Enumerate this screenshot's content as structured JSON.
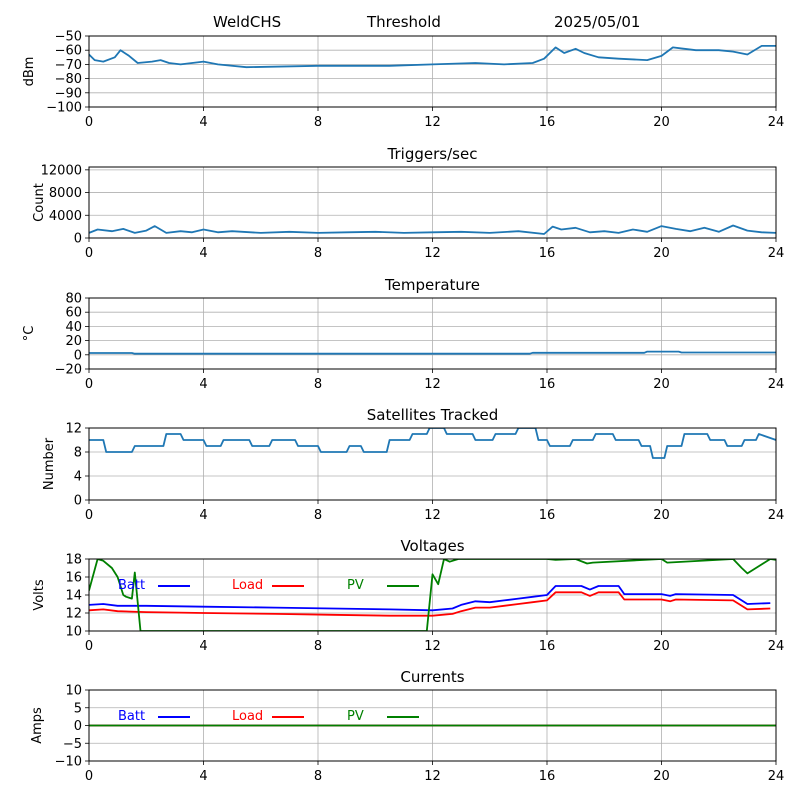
{
  "header": {
    "station": "WeldCHS",
    "mode": "Threshold",
    "date": "2025/05/01"
  },
  "colors": {
    "series": "#1f77b4",
    "batt": "#0000ff",
    "load": "#ff0000",
    "pv": "#008000",
    "grid": "#b0b0b0"
  },
  "chart_data": [
    {
      "type": "line",
      "title": "",
      "xlabel": "",
      "ylabel": "dBm",
      "xlim": [
        0,
        24
      ],
      "ylim": [
        -100,
        -50
      ],
      "xticks": [
        0,
        4,
        8,
        12,
        16,
        20,
        24
      ],
      "yticks": [
        -100,
        -90,
        -80,
        -70,
        -60,
        -50
      ],
      "grid": true,
      "series": [
        {
          "x": [
            0,
            0.2,
            0.5,
            0.9,
            1.1,
            1.4,
            1.7,
            2.2,
            2.5,
            2.8,
            3.2,
            3.6,
            4.0,
            4.5,
            5.5,
            8,
            10.5,
            12.0,
            13.5,
            14.5,
            15.5,
            15.9,
            16.3,
            16.6,
            17.0,
            17.3,
            17.8,
            18.5,
            19.5,
            20.0,
            20.4,
            20.8,
            21.2,
            22.0,
            22.5,
            23.0,
            23.5,
            24
          ],
          "values": [
            -63,
            -67,
            -68,
            -65,
            -60,
            -64,
            -69,
            -68,
            -67,
            -69,
            -70,
            -69,
            -68,
            -70,
            -72,
            -71,
            -71,
            -70,
            -69,
            -70,
            -69,
            -66,
            -58,
            -62,
            -59,
            -62,
            -65,
            -66,
            -67,
            -64,
            -58,
            -59,
            -60,
            -60,
            -61,
            -63,
            -57,
            -57
          ]
        }
      ]
    },
    {
      "type": "line",
      "title": "Triggers/sec",
      "xlabel": "",
      "ylabel": "Count",
      "xlim": [
        0,
        24
      ],
      "ylim": [
        0,
        12500
      ],
      "xticks": [
        0,
        4,
        8,
        12,
        16,
        20,
        24
      ],
      "yticks": [
        0,
        4000,
        8000,
        12000
      ],
      "grid": true,
      "series": [
        {
          "x": [
            0,
            0.3,
            0.8,
            1.2,
            1.6,
            2.0,
            2.3,
            2.7,
            3.2,
            3.6,
            4.0,
            4.5,
            5.0,
            6.0,
            7.0,
            8.0,
            9.0,
            10.0,
            11.0,
            12.0,
            13.0,
            14.0,
            15.0,
            15.9,
            16.2,
            16.5,
            17.0,
            17.5,
            18.0,
            18.5,
            19.0,
            19.5,
            20.0,
            20.5,
            21.0,
            21.5,
            22.0,
            22.5,
            23.0,
            23.5,
            24
          ],
          "values": [
            900,
            1500,
            1200,
            1600,
            900,
            1300,
            2100,
            900,
            1200,
            1000,
            1500,
            1000,
            1200,
            900,
            1100,
            900,
            1000,
            1100,
            900,
            1000,
            1100,
            900,
            1200,
            700,
            2000,
            1500,
            1800,
            1000,
            1200,
            900,
            1500,
            1100,
            2100,
            1600,
            1200,
            1800,
            1100,
            2200,
            1300,
            1000,
            900
          ]
        }
      ]
    },
    {
      "type": "line",
      "title": "Temperature",
      "xlabel": "",
      "ylabel": "°C",
      "xlim": [
        0,
        24
      ],
      "ylim": [
        -20,
        80
      ],
      "xticks": [
        0,
        4,
        8,
        12,
        16,
        20,
        24
      ],
      "yticks": [
        -20,
        0,
        20,
        40,
        60,
        80
      ],
      "grid": true,
      "series": [
        {
          "x": [
            0,
            1.5,
            1.6,
            15.4,
            15.5,
            19.4,
            19.5,
            20.6,
            20.7,
            24
          ],
          "values": [
            2.5,
            2.5,
            1.5,
            1.5,
            2.8,
            2.8,
            4.5,
            4.5,
            3.2,
            3.2
          ]
        }
      ]
    },
    {
      "type": "line",
      "title": "Satellites Tracked",
      "xlabel": "",
      "ylabel": "Number",
      "xlim": [
        0,
        24
      ],
      "ylim": [
        0,
        12
      ],
      "xticks": [
        0,
        4,
        8,
        12,
        16,
        20,
        24
      ],
      "yticks": [
        0,
        4,
        8,
        12
      ],
      "grid": true,
      "series": [
        {
          "x": [
            0,
            0.5,
            0.6,
            1.5,
            1.6,
            2.6,
            2.7,
            3.2,
            3.3,
            4.0,
            4.1,
            4.6,
            4.7,
            5.6,
            5.7,
            6.3,
            6.4,
            7.2,
            7.3,
            8.0,
            8.1,
            9.0,
            9.1,
            9.5,
            9.6,
            10.4,
            10.5,
            11.2,
            11.3,
            11.8,
            11.9,
            12.4,
            12.5,
            13.4,
            13.5,
            14.1,
            14.2,
            14.9,
            15.0,
            15.6,
            15.7,
            16.0,
            16.1,
            16.8,
            16.9,
            17.6,
            17.7,
            18.3,
            18.4,
            19.2,
            19.3,
            19.6,
            19.7,
            20.1,
            20.2,
            20.7,
            20.8,
            21.6,
            21.7,
            22.2,
            22.3,
            22.8,
            22.9,
            23.3,
            23.4,
            24
          ],
          "values": [
            10,
            10,
            8,
            8,
            9,
            9,
            11,
            11,
            10,
            10,
            9,
            9,
            10,
            10,
            9,
            9,
            10,
            10,
            9,
            9,
            8,
            8,
            9,
            9,
            8,
            8,
            10,
            10,
            11,
            11,
            12,
            12,
            11,
            11,
            10,
            10,
            11,
            11,
            12,
            12,
            10,
            10,
            9,
            9,
            10,
            10,
            11,
            11,
            10,
            10,
            9,
            9,
            7,
            7,
            9,
            9,
            11,
            11,
            10,
            10,
            9,
            9,
            10,
            10,
            11,
            10
          ]
        }
      ]
    },
    {
      "type": "line",
      "title": "Voltages",
      "xlabel": "",
      "ylabel": "Volts",
      "xlim": [
        0,
        24
      ],
      "ylim": [
        10,
        18
      ],
      "xticks": [
        0,
        4,
        8,
        12,
        16,
        20,
        24
      ],
      "yticks": [
        10,
        12,
        14,
        16,
        18
      ],
      "grid": true,
      "legend": "top-left",
      "series": [
        {
          "name": "Batt",
          "color_key": "batt",
          "x": [
            0,
            0.5,
            1.0,
            2.0,
            4.0,
            6.5,
            8.5,
            10.5,
            12.0,
            12.7,
            13.0,
            13.5,
            14.0,
            14.5,
            15.0,
            15.5,
            16.0,
            16.3,
            17.2,
            17.5,
            17.8,
            18.5,
            18.7,
            20.0,
            20.3,
            20.5,
            22.5,
            22.8,
            23.0,
            23.8
          ],
          "values": [
            12.9,
            13.0,
            12.8,
            12.8,
            12.7,
            12.6,
            12.5,
            12.4,
            12.3,
            12.5,
            12.9,
            13.3,
            13.2,
            13.4,
            13.6,
            13.8,
            14.0,
            15.0,
            15.0,
            14.6,
            15.0,
            15.0,
            14.1,
            14.1,
            13.9,
            14.1,
            14.0,
            13.4,
            13.0,
            13.1
          ]
        },
        {
          "name": "Load",
          "color_key": "load",
          "x": [
            0,
            0.5,
            1.0,
            2.0,
            4.0,
            6.5,
            8.5,
            10.5,
            12.0,
            12.7,
            13.0,
            13.5,
            14.0,
            14.5,
            15.0,
            15.5,
            16.0,
            16.3,
            17.2,
            17.5,
            17.8,
            18.5,
            18.7,
            20.0,
            20.3,
            20.5,
            22.5,
            22.8,
            23.0,
            23.8
          ],
          "values": [
            12.3,
            12.4,
            12.2,
            12.1,
            12.0,
            11.9,
            11.8,
            11.7,
            11.7,
            11.9,
            12.2,
            12.6,
            12.6,
            12.8,
            13.0,
            13.2,
            13.4,
            14.3,
            14.3,
            13.9,
            14.3,
            14.3,
            13.5,
            13.5,
            13.3,
            13.5,
            13.4,
            12.8,
            12.4,
            12.5
          ]
        },
        {
          "name": "PV",
          "color_key": "pv",
          "x": [
            0,
            0.3,
            0.5,
            0.8,
            1.0,
            1.2,
            1.3,
            1.5,
            1.6,
            1.8,
            11.8,
            12.0,
            12.2,
            12.4,
            12.6,
            12.9,
            16.0,
            16.3,
            17.0,
            17.4,
            17.6,
            20.0,
            20.2,
            22.5,
            22.8,
            23.0,
            23.8,
            24
          ],
          "values": [
            14.5,
            18.0,
            17.8,
            17.0,
            16.0,
            14.0,
            13.8,
            13.6,
            16.5,
            10.0,
            10.0,
            16.3,
            15.2,
            18.0,
            17.7,
            18.0,
            18.0,
            17.9,
            18.0,
            17.5,
            17.6,
            18.0,
            17.6,
            18.0,
            17.0,
            16.4,
            18.0,
            17.9
          ]
        }
      ]
    },
    {
      "type": "line",
      "title": "Currents",
      "xlabel": "",
      "ylabel": "Amps",
      "xlim": [
        0,
        24
      ],
      "ylim": [
        -10,
        10
      ],
      "xticks": [
        0,
        4,
        8,
        12,
        16,
        20,
        24
      ],
      "yticks": [
        -10,
        -5,
        0,
        5,
        10
      ],
      "grid": true,
      "legend": "top-left",
      "series": [
        {
          "name": "Batt",
          "color_key": "batt",
          "x": [
            0,
            24
          ],
          "values": [
            0,
            0
          ]
        },
        {
          "name": "Load",
          "color_key": "load",
          "x": [
            0,
            24
          ],
          "values": [
            0,
            0
          ]
        },
        {
          "name": "PV",
          "color_key": "pv",
          "x": [
            0,
            24
          ],
          "values": [
            0,
            0
          ]
        }
      ]
    }
  ]
}
